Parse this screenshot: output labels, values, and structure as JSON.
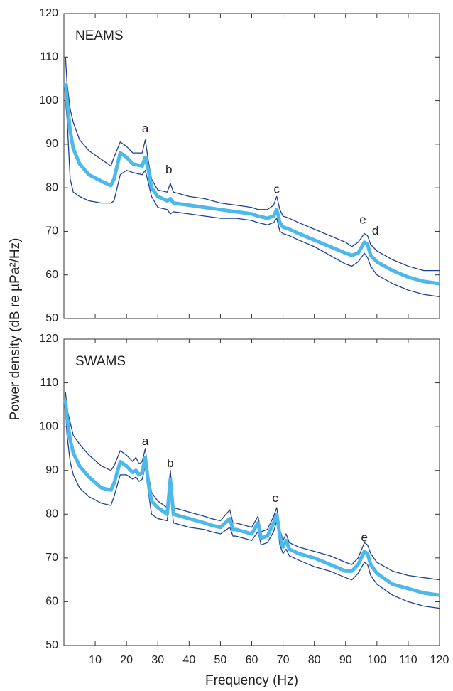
{
  "chart_data": [
    {
      "type": "line",
      "label": "NEAMS",
      "ylabel": "Power density (dB re µPa²/Hz)",
      "x": [
        0.5,
        1,
        2,
        3,
        5,
        8,
        12,
        15,
        16,
        18,
        20,
        22,
        25,
        26,
        27,
        28,
        30,
        33,
        34,
        35,
        40,
        45,
        50,
        55,
        60,
        62,
        65,
        67,
        68,
        69,
        70,
        72,
        75,
        80,
        85,
        90,
        92,
        94,
        96,
        97,
        98,
        100,
        105,
        110,
        115,
        120
      ],
      "series": [
        {
          "color": "#1f3f93",
          "values": [
            110,
            104,
            98,
            95,
            91,
            88.5,
            86.5,
            85,
            87,
            90.5,
            89.5,
            88,
            88,
            91,
            86,
            82,
            79.5,
            79,
            81,
            79,
            78,
            77.5,
            76.5,
            76,
            75.5,
            75,
            75,
            76,
            78,
            75,
            73.5,
            73,
            72,
            70.5,
            69,
            67.5,
            66.5,
            67.5,
            69.5,
            69,
            67,
            65.5,
            63.5,
            62,
            61,
            61
          ]
        },
        {
          "color": "#1f3f93",
          "values": [
            100,
            96,
            82,
            79,
            78,
            77,
            76.5,
            76.5,
            77,
            83,
            84,
            83.5,
            83,
            84,
            81,
            78,
            75.5,
            75,
            74,
            74.5,
            74,
            73.5,
            73,
            73,
            72.5,
            72,
            71.5,
            72,
            73,
            70,
            69.5,
            69,
            68,
            66.5,
            64.5,
            62.5,
            62,
            63,
            65,
            64,
            62,
            60,
            58,
            56.5,
            55.5,
            55
          ]
        },
        {
          "color": "#4db8ea",
          "values": [
            104,
            100,
            93,
            89,
            85.5,
            83,
            81.5,
            80.5,
            82,
            88,
            87,
            85.5,
            85,
            87,
            84,
            80,
            78,
            77,
            77.5,
            76.5,
            76,
            75.5,
            75,
            74.5,
            74,
            73.5,
            73,
            73.5,
            75,
            72,
            71,
            70.5,
            69.5,
            68,
            66.5,
            65,
            64.5,
            65,
            67.5,
            67,
            64.5,
            63,
            61,
            59.5,
            58.5,
            58
          ]
        }
      ],
      "annotations": [
        "a",
        "b",
        "c",
        "e",
        "d"
      ],
      "xlim": [
        0,
        120
      ],
      "ylim": [
        50,
        120
      ],
      "yticks": [
        50,
        60,
        70,
        80,
        90,
        100,
        110,
        120
      ]
    },
    {
      "type": "line",
      "label": "SWAMS",
      "xlabel": "Frequency (Hz)",
      "x": [
        0.5,
        1,
        2,
        3,
        5,
        8,
        12,
        15,
        16,
        18,
        20,
        22,
        23,
        24,
        25,
        26,
        27,
        28,
        30,
        33,
        34,
        35,
        40,
        45,
        47,
        50,
        53,
        54,
        55,
        60,
        62,
        63,
        65,
        67,
        68,
        69,
        70,
        71,
        72,
        75,
        80,
        85,
        90,
        92,
        94,
        96,
        97,
        98,
        100,
        105,
        110,
        115,
        120
      ],
      "series": [
        {
          "color": "#1f3f93",
          "values": [
            108,
            104,
            101,
            98,
            96,
            93.5,
            91,
            90,
            91,
            94.5,
            93.5,
            92,
            93,
            91.5,
            92,
            95,
            89,
            85,
            83,
            81.5,
            90,
            81.5,
            80.5,
            79.5,
            79,
            78.5,
            81,
            78,
            78,
            77,
            79.5,
            76,
            76.5,
            79.5,
            81.5,
            76.5,
            74,
            75.5,
            73.5,
            72.5,
            71.5,
            70.5,
            69,
            68.5,
            70,
            73.5,
            73,
            71,
            69,
            67,
            66,
            65.5,
            65
          ]
        },
        {
          "color": "#1f3f93",
          "values": [
            104,
            98,
            92,
            89,
            86,
            84,
            82.5,
            82,
            84,
            89,
            89,
            88,
            88.5,
            87.5,
            88,
            91,
            85,
            80,
            79,
            78.5,
            85,
            78,
            77,
            76.5,
            76,
            75.5,
            77,
            75,
            75,
            74,
            76,
            73,
            73.5,
            76,
            78.5,
            73,
            71,
            72,
            70.5,
            69.5,
            68,
            67,
            65.5,
            65,
            66.5,
            69,
            68.5,
            66,
            64,
            61.5,
            60,
            59,
            58.5
          ]
        },
        {
          "color": "#4db8ea",
          "values": [
            106,
            102,
            97,
            94,
            91,
            88.5,
            86,
            85.5,
            87,
            92,
            91,
            89.5,
            90,
            89,
            89.5,
            93,
            87,
            83,
            81.5,
            80,
            88,
            80,
            79,
            78,
            77.5,
            77,
            79,
            76.5,
            76.5,
            75.5,
            78,
            74.5,
            75,
            78,
            80,
            75,
            72.5,
            74,
            72,
            71,
            70,
            68.5,
            67,
            67,
            68.5,
            71.5,
            71,
            68.5,
            66.5,
            64,
            63,
            62,
            61.5
          ]
        }
      ],
      "annotations": [
        "a",
        "b",
        "c",
        "e"
      ],
      "xlim": [
        0,
        120
      ],
      "ylim": [
        50,
        120
      ],
      "yticks": [
        50,
        60,
        70,
        80,
        90,
        100,
        110,
        120
      ],
      "xticks": [
        10,
        20,
        30,
        40,
        50,
        60,
        70,
        80,
        90,
        100,
        110,
        120
      ]
    }
  ]
}
